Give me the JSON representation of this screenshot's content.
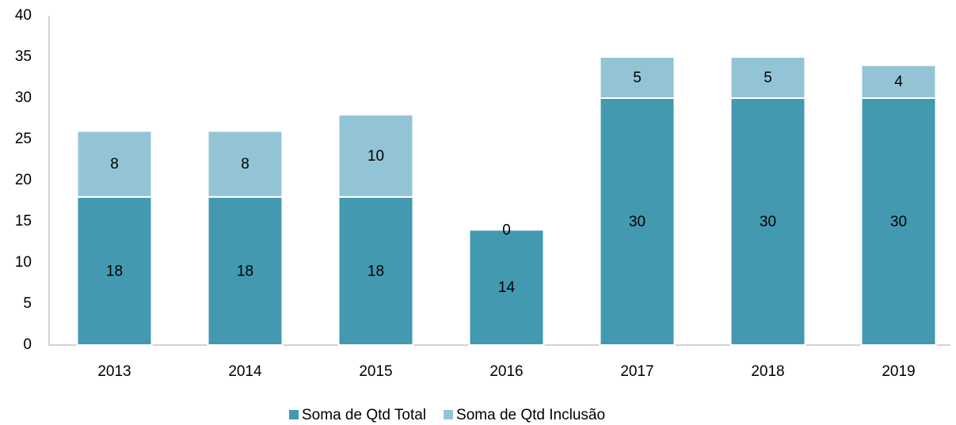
{
  "chart_data": {
    "type": "bar",
    "stacked": true,
    "categories": [
      "2013",
      "2014",
      "2015",
      "2016",
      "2017",
      "2018",
      "2019"
    ],
    "series": [
      {
        "name": "Soma de Qtd Total",
        "color": "#4399b0",
        "values": [
          18,
          18,
          18,
          14,
          30,
          30,
          30
        ]
      },
      {
        "name": "Soma de Qtd Inclusão",
        "color": "#93c4d6",
        "values": [
          8,
          8,
          10,
          0,
          5,
          5,
          4
        ]
      }
    ],
    "ylim": [
      0,
      40
    ],
    "yticks": [
      0,
      5,
      10,
      15,
      20,
      25,
      30,
      35,
      40
    ],
    "grid": false,
    "legend": "bottom",
    "data_labels": true
  }
}
